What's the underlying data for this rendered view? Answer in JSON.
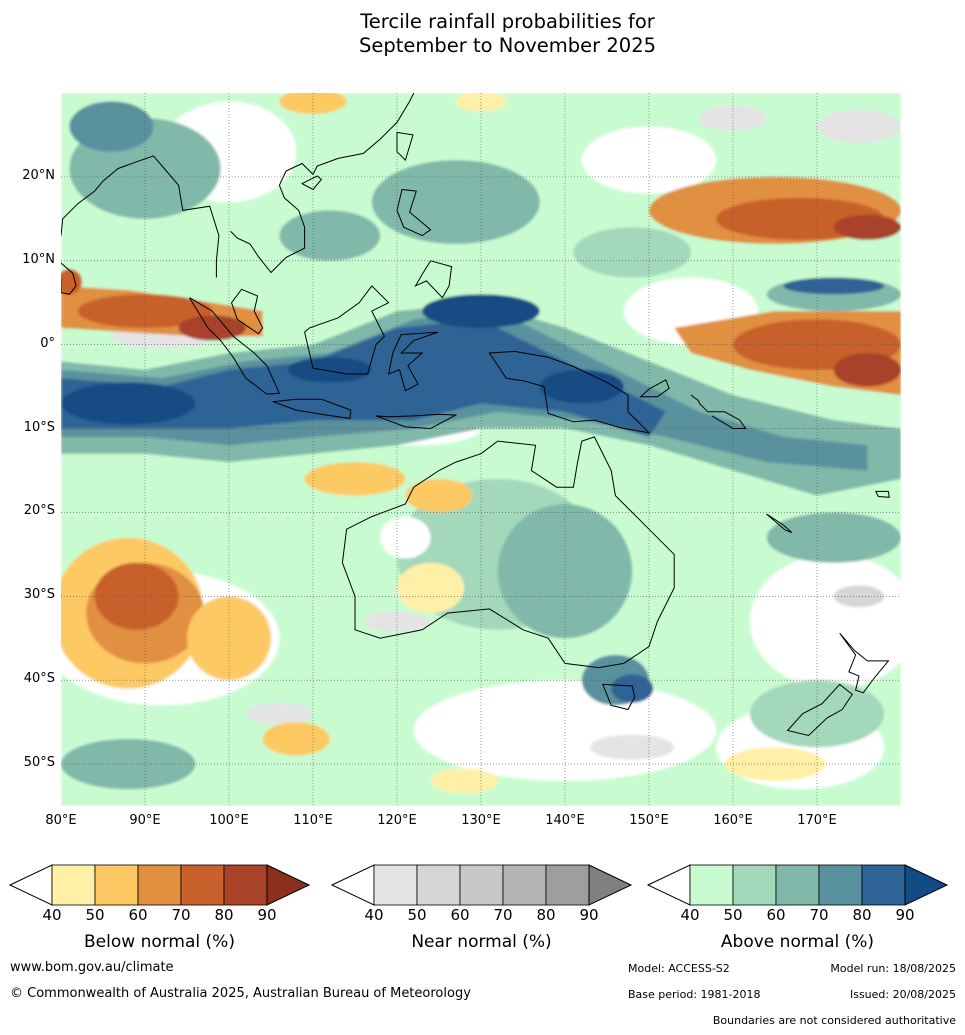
{
  "title": {
    "line1": "Tercile rainfall probabilities for",
    "line2": "September to November 2025"
  },
  "map": {
    "lon_labels": [
      "80°E",
      "90°E",
      "100°E",
      "110°E",
      "120°E",
      "130°E",
      "140°E",
      "150°E",
      "160°E",
      "170°E"
    ],
    "lat_labels": [
      "20°N",
      "10°N",
      "0°",
      "10°S",
      "20°S",
      "30°S",
      "40°S",
      "50°S"
    ],
    "lon_range": [
      80,
      180
    ],
    "lat_range": [
      -55,
      30
    ],
    "colors": {
      "below": [
        "#fff0a8",
        "#fdc964",
        "#e0903f",
        "#c8612c",
        "#a8432a",
        "#8c2f1c"
      ],
      "near": [
        "#e4e4e4",
        "#d6d6d6",
        "#c8c8c8",
        "#b4b4b4",
        "#9e9e9e",
        "#808080"
      ],
      "above": [
        "#c8fcd0",
        "#a4d8bb",
        "#80b8aa",
        "#5a919e",
        "#2e6496",
        "#124c84"
      ]
    }
  },
  "legends": [
    {
      "key": "below",
      "label": "Below normal (%)",
      "ticks": [
        "40",
        "50",
        "60",
        "70",
        "80",
        "90"
      ]
    },
    {
      "key": "near",
      "label": "Near normal (%)",
      "ticks": [
        "40",
        "50",
        "60",
        "70",
        "80",
        "90"
      ]
    },
    {
      "key": "above",
      "label": "Above normal (%)",
      "ticks": [
        "40",
        "50",
        "60",
        "70",
        "80",
        "90"
      ]
    }
  ],
  "footer": {
    "website": "www.bom.gov.au/climate",
    "copyright": "© Commonwealth of Australia 2025, Australian Bureau of Meteorology",
    "model": "Model: ACCESS-S2",
    "model_run": "Model run: 18/08/2025",
    "base_period": "Base period: 1981-2018",
    "issued": "Issued: 20/08/2025",
    "disclaimer": "Boundaries are not considered authoritative"
  }
}
